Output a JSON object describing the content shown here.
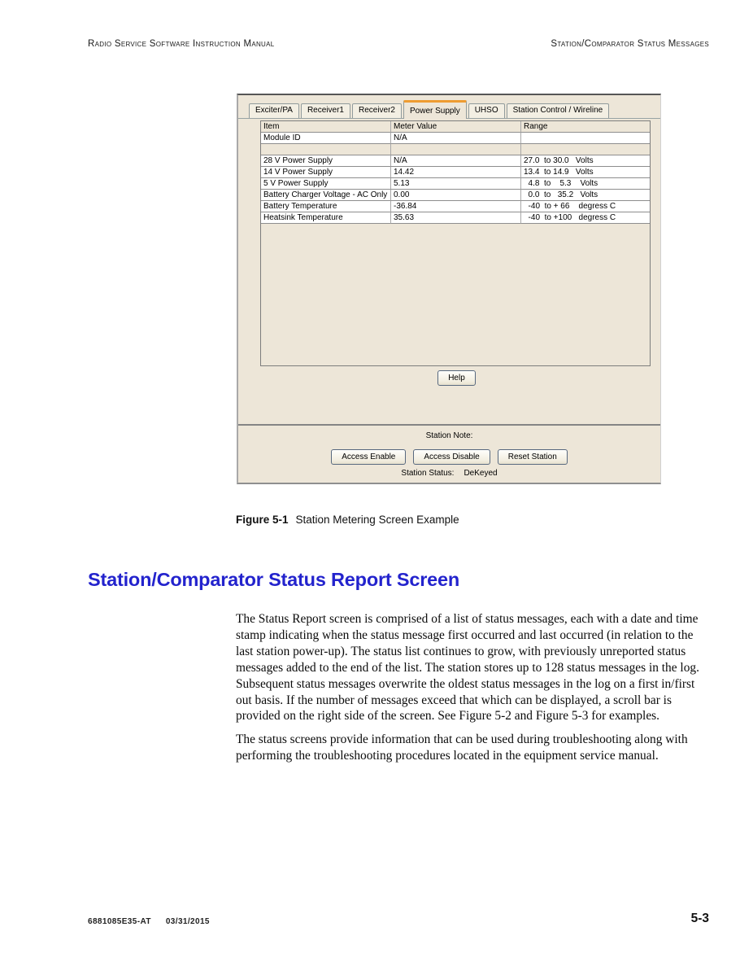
{
  "colors": {
    "heading_blue": "#2323CD",
    "dialog_bg": "#EDE6D8",
    "selected_tab_accent": "#EE9C31"
  },
  "page": {
    "header_left": "Radio Service Software Instruction Manual",
    "header_right": "Station/Comparator Status Messages",
    "footer_doc_number": "6881085E35-AT",
    "footer_date": "03/31/2015",
    "footer_page_number": "5-3"
  },
  "figure_caption": {
    "label": "Figure 5-1",
    "text": "Station Metering Screen Example"
  },
  "section": {
    "title": "Station/Comparator Status Report Screen",
    "paragraph1": "The Status Report screen is comprised of a list of status messages, each with a date and time stamp indicating when the status message first occurred and last occurred (in relation to the last station power-up). The status list continues to grow, with previously unreported status messages added to the end of the list. The station stores up to 128 status messages in the log. Subsequent status messages overwrite the oldest status messages in the log on a first in/first out basis. If the number of messages exceed that which can be displayed, a scroll bar is provided on the right side of the screen. See Figure 5-2 and Figure 5-3 for examples.",
    "paragraph2": "The status screens provide information that can be used during troubleshooting along with performing the troubleshooting procedures located in the equipment service manual."
  },
  "metering_screen": {
    "tabs": [
      {
        "label": "Exciter/PA",
        "selected": false
      },
      {
        "label": "Receiver1",
        "selected": false
      },
      {
        "label": "Receiver2",
        "selected": false
      },
      {
        "label": "Power Supply",
        "selected": true
      },
      {
        "label": "UHSO",
        "selected": false
      },
      {
        "label": "Station Control / Wireline",
        "selected": false
      }
    ],
    "table": {
      "columns": [
        "Item",
        "Meter Value",
        "Range"
      ],
      "rows": [
        {
          "item": "Module ID",
          "value": "N/A",
          "range": ""
        },
        {
          "item": "",
          "value": "",
          "range": ""
        },
        {
          "item": "28 V Power Supply",
          "value": "N/A",
          "range": "27.0  to 30.0   Volts"
        },
        {
          "item": "14 V Power Supply",
          "value": "14.42",
          "range": "13.4  to 14.9   Volts"
        },
        {
          "item": "5 V Power Supply",
          "value": "5.13",
          "range": "  4.8  to    5.3    Volts"
        },
        {
          "item": "Battery Charger Voltage - AC Only",
          "value": "0.00",
          "range": "  0.0  to   35.2   Volts"
        },
        {
          "item": "Battery Temperature",
          "value": "-36.84",
          "range": "  -40  to + 66    degress C"
        },
        {
          "item": "Heatsink Temperature",
          "value": "35.63",
          "range": "  -40  to +100   degress C"
        }
      ]
    },
    "help_button": "Help",
    "station_note_label": "Station Note:",
    "access_enable_button": "Access Enable",
    "access_disable_button": "Access Disable",
    "reset_station_button": "Reset Station",
    "station_status_label": "Station Status:",
    "station_status_value": "DeKeyed"
  }
}
